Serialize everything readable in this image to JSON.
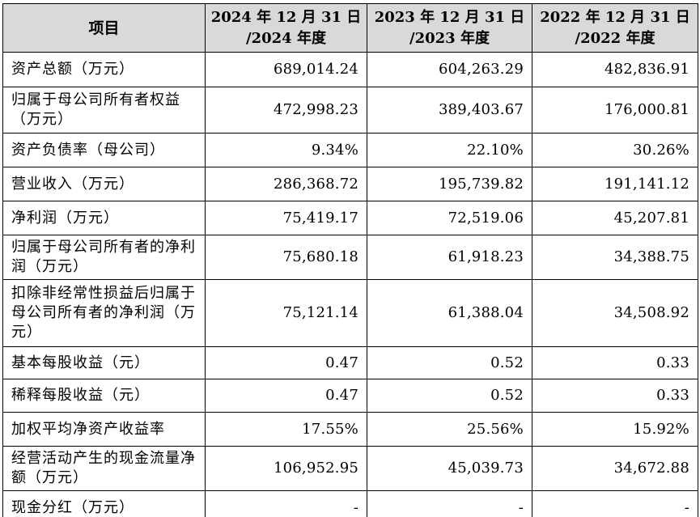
{
  "table": {
    "headers": [
      {
        "line1": "项目",
        "line2": ""
      },
      {
        "line1": "2024 年 12 月 31 日",
        "line2": "/2024 年度"
      },
      {
        "line1": "2023 年 12 月 31 日",
        "line2": "/2023 年度"
      },
      {
        "line1": "2022 年 12 月 31 日",
        "line2": "/2022 年度"
      }
    ],
    "rows": [
      {
        "label": "资产总额（万元）",
        "v2024": "689,014.24",
        "v2023": "604,263.29",
        "v2022": "482,836.91"
      },
      {
        "label": "归属于母公司所有者权益（万元）",
        "v2024": "472,998.23",
        "v2023": "389,403.67",
        "v2022": "176,000.81"
      },
      {
        "label": "资产负债率（母公司）",
        "v2024": "9.34%",
        "v2023": "22.10%",
        "v2022": "30.26%"
      },
      {
        "label": "营业收入（万元）",
        "v2024": "286,368.72",
        "v2023": "195,739.82",
        "v2022": "191,141.12"
      },
      {
        "label": "净利润（万元）",
        "v2024": "75,419.17",
        "v2023": "72,519.06",
        "v2022": "45,207.81"
      },
      {
        "label": "归属于母公司所有者的净利润（万元）",
        "v2024": "75,680.18",
        "v2023": "61,918.23",
        "v2022": "34,388.75"
      },
      {
        "label": "扣除非经常性损益后归属于母公司所有者的净利润（万元）",
        "v2024": "75,121.14",
        "v2023": "61,388.04",
        "v2022": "34,508.92"
      },
      {
        "label": "基本每股收益（元）",
        "v2024": "0.47",
        "v2023": "0.52",
        "v2022": "0.33"
      },
      {
        "label": "稀释每股收益（元）",
        "v2024": "0.47",
        "v2023": "0.52",
        "v2022": "0.33"
      },
      {
        "label": "加权平均净资产收益率",
        "v2024": "17.55%",
        "v2023": "25.56%",
        "v2022": "15.92%"
      },
      {
        "label": "经营活动产生的现金流量净额（万元）",
        "v2024": "106,952.95",
        "v2023": "45,039.73",
        "v2022": "34,672.88"
      },
      {
        "label": "现金分红（万元）",
        "v2024": "-",
        "v2023": "-",
        "v2022": "-"
      }
    ]
  },
  "colors": {
    "header_background": "#d9d9d9",
    "border": "#000000",
    "text": "#000000"
  }
}
